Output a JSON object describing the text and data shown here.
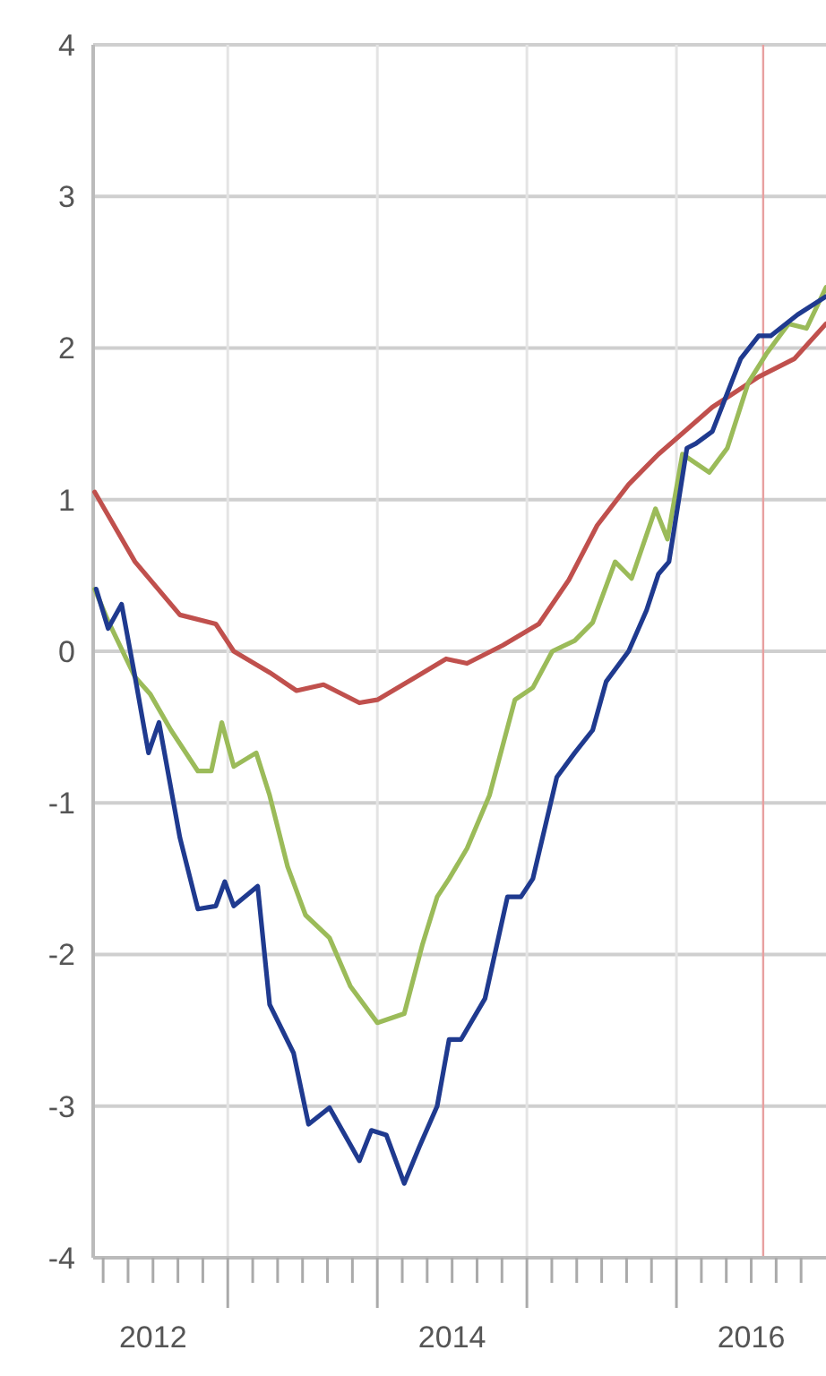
{
  "chart_data": {
    "type": "line",
    "xlim": [
      2012.1,
      2017.0
    ],
    "ylim": [
      -4,
      4
    ],
    "yticks": [
      -4,
      -3,
      -2,
      -1,
      0,
      1,
      2,
      3,
      4
    ],
    "grid": true,
    "line_style": "solid",
    "marker": "none",
    "xticks": [
      {
        "value": 2012.1667,
        "label": null
      },
      {
        "value": 2012.3333,
        "label": null
      },
      {
        "value": 2012.5,
        "label": "2012"
      },
      {
        "value": 2012.6667,
        "label": null
      },
      {
        "value": 2012.8333,
        "label": null
      },
      {
        "value": 2013,
        "label": null
      },
      {
        "value": 2013.1667,
        "label": null
      },
      {
        "value": 2013.3333,
        "label": null
      },
      {
        "value": 2013.5,
        "label": null
      },
      {
        "value": 2013.6667,
        "label": null
      },
      {
        "value": 2013.8333,
        "label": null
      },
      {
        "value": 2014,
        "label": null
      },
      {
        "value": 2014.1667,
        "label": null
      },
      {
        "value": 2014.3333,
        "label": null
      },
      {
        "value": 2014.5,
        "label": "2014"
      },
      {
        "value": 2014.6667,
        "label": null
      },
      {
        "value": 2014.8333,
        "label": null
      },
      {
        "value": 2015,
        "label": null
      },
      {
        "value": 2015.1667,
        "label": null
      },
      {
        "value": 2015.3333,
        "label": null
      },
      {
        "value": 2015.5,
        "label": null
      },
      {
        "value": 2015.6667,
        "label": null
      },
      {
        "value": 2015.8333,
        "label": null
      },
      {
        "value": 2016,
        "label": null
      },
      {
        "value": 2016.1667,
        "label": null
      },
      {
        "value": 2016.3333,
        "label": null
      },
      {
        "value": 2016.5,
        "label": "2016"
      },
      {
        "value": 2016.6667,
        "label": null
      },
      {
        "value": 2016.8333,
        "label": null
      }
    ],
    "ref_lines": [
      {
        "axis": "x",
        "value": 2016.58,
        "color": "#e8a0a0"
      }
    ],
    "series": [
      {
        "color": "#c0504d",
        "x": [
          2012.11,
          2012.38,
          2012.68,
          2012.92,
          2013.04,
          2013.28,
          2013.46,
          2013.64,
          2013.88,
          2014.0,
          2014.24,
          2014.46,
          2014.6,
          2014.84,
          2015.08,
          2015.28,
          2015.47,
          2015.68,
          2015.88,
          2016.24,
          2016.55,
          2016.79,
          2017.0
        ],
        "values": [
          1.05,
          0.59,
          0.24,
          0.18,
          0.0,
          -0.14,
          -0.26,
          -0.22,
          -0.34,
          -0.32,
          -0.18,
          -0.05,
          -0.08,
          0.04,
          0.18,
          0.47,
          0.83,
          1.1,
          1.3,
          1.61,
          1.81,
          1.93,
          2.16
        ]
      },
      {
        "color": "#9bbb59",
        "x": [
          2012.11,
          2012.2,
          2012.38,
          2012.48,
          2012.62,
          2012.8,
          2012.89,
          2012.96,
          2013.04,
          2013.19,
          2013.28,
          2013.4,
          2013.52,
          2013.68,
          2013.82,
          2014.0,
          2014.18,
          2014.3,
          2014.4,
          2014.48,
          2014.6,
          2014.75,
          2014.92,
          2015.04,
          2015.17,
          2015.32,
          2015.44,
          2015.59,
          2015.7,
          2015.86,
          2015.94,
          2016.04,
          2016.22,
          2016.34,
          2016.48,
          2016.6,
          2016.75,
          2016.87,
          2017.0
        ],
        "values": [
          0.41,
          0.2,
          -0.17,
          -0.28,
          -0.52,
          -0.79,
          -0.79,
          -0.47,
          -0.76,
          -0.67,
          -0.95,
          -1.42,
          -1.74,
          -1.89,
          -2.21,
          -2.45,
          -2.39,
          -1.94,
          -1.62,
          -1.5,
          -1.3,
          -0.95,
          -0.32,
          -0.24,
          0.0,
          0.07,
          0.19,
          0.59,
          0.48,
          0.94,
          0.74,
          1.3,
          1.18,
          1.34,
          1.77,
          1.96,
          2.16,
          2.13,
          2.4
        ]
      },
      {
        "color": "#1f3a8f",
        "x": [
          2012.12,
          2012.2,
          2012.29,
          2012.38,
          2012.47,
          2012.54,
          2012.68,
          2012.8,
          2012.92,
          2012.98,
          2013.04,
          2013.2,
          2013.28,
          2013.44,
          2013.54,
          2013.68,
          2013.88,
          2013.96,
          2014.06,
          2014.18,
          2014.28,
          2014.4,
          2014.48,
          2014.56,
          2014.72,
          2014.87,
          2014.96,
          2015.04,
          2015.2,
          2015.32,
          2015.44,
          2015.53,
          2015.68,
          2015.8,
          2015.88,
          2015.95,
          2016.07,
          2016.13,
          2016.24,
          2016.43,
          2016.55,
          2016.63,
          2016.81,
          2017.0
        ],
        "values": [
          0.41,
          0.15,
          0.31,
          -0.17,
          -0.67,
          -0.47,
          -1.23,
          -1.7,
          -1.68,
          -1.52,
          -1.68,
          -1.55,
          -2.33,
          -2.65,
          -3.12,
          -3.01,
          -3.36,
          -3.16,
          -3.19,
          -3.51,
          -3.27,
          -3.0,
          -2.56,
          -2.56,
          -2.29,
          -1.62,
          -1.62,
          -1.5,
          -0.83,
          -0.67,
          -0.52,
          -0.2,
          0.0,
          0.27,
          0.51,
          0.59,
          1.34,
          1.37,
          1.45,
          1.93,
          2.08,
          2.08,
          2.22,
          2.34
        ]
      }
    ]
  }
}
